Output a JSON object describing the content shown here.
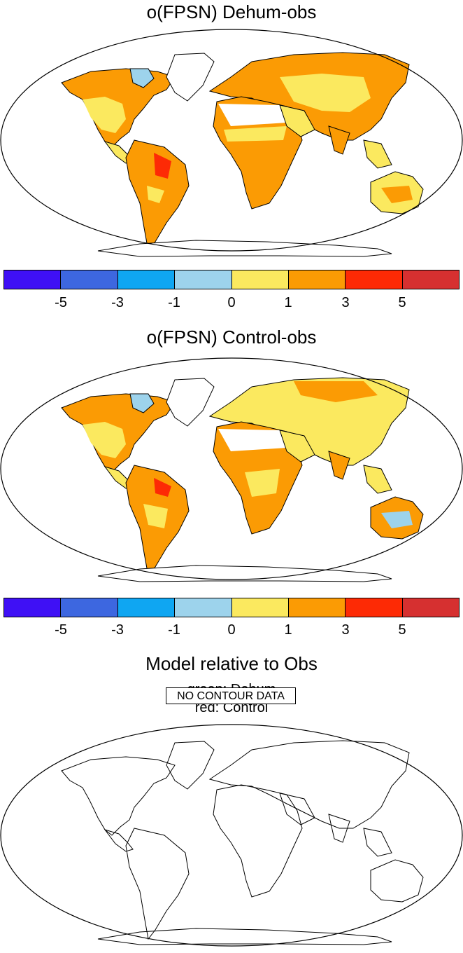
{
  "panels": [
    {
      "title": "o(FPSN) Dehum-obs"
    },
    {
      "title": "o(FPSN) Control-obs"
    },
    {
      "title": "Model relative to Obs",
      "legend_lines": [
        "green: Dehum",
        "red: Control"
      ],
      "message": "NO CONTOUR DATA"
    }
  ],
  "colorbar": {
    "colors": [
      "#3f10f5",
      "#3d67e0",
      "#0fa6f2",
      "#9dd3ec",
      "#fbe95f",
      "#fb9b04",
      "#fd2a05",
      "#d63030"
    ],
    "labels": [
      "-5",
      "-3",
      "-1",
      "0",
      "1",
      "3",
      "5"
    ]
  },
  "map_colors": {
    "outline": "#000000",
    "ocean": "#ffffff"
  }
}
